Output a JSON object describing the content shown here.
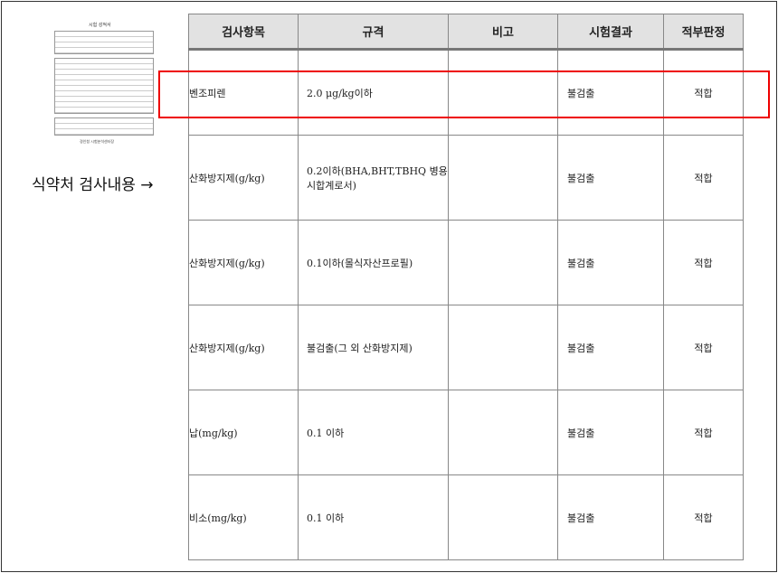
{
  "thumbnail": {
    "title": "시험 성적서",
    "footer": "경인청 시험분석센터장"
  },
  "caption": "식약처 검사내용 →",
  "table": {
    "headers": [
      "검사항목",
      "규격",
      "비고",
      "시험결과",
      "적부판정"
    ],
    "rows": [
      [
        "벤조피렌",
        "2.0 μg/kg이하",
        "",
        "불검출",
        "적합"
      ],
      [
        "산화방지제(g/kg)",
        "0.2이하(BHA,BHT,TBHQ 병용시합계로서)",
        "",
        "불검출",
        "적합"
      ],
      [
        "산화방지제(g/kg)",
        "0.1이하(몰식자산프로필)",
        "",
        "불검출",
        "적합"
      ],
      [
        "산화방지제(g/kg)",
        "불검출(그 외 산화방지제)",
        "",
        "불검출",
        "적합"
      ],
      [
        "납(mg/kg)",
        "0.1 이하",
        "",
        "불검출",
        "적합"
      ],
      [
        "비소(mg/kg)",
        "0.1 이하",
        "",
        "불검출",
        "적합"
      ]
    ]
  },
  "highlight_color": "#e00000"
}
